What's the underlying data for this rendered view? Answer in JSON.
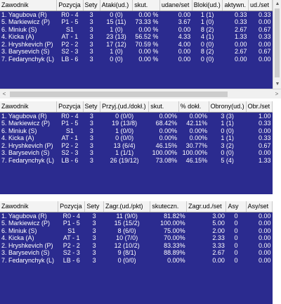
{
  "t1": {
    "headers": [
      "Zawodnik",
      "Pozycja",
      "Sety",
      "Ataki(ud.)",
      "skut.",
      "udane/set",
      "Bloki(ud.)",
      "aktywn.",
      "ud./set"
    ],
    "rows": [
      [
        "1. Yagubova (R)",
        "R0 - 4",
        "3",
        "0 (0)",
        "0.00 %",
        "0.00",
        "1 (1)",
        "0.33",
        "0.33"
      ],
      [
        "5. Markiewicz (P)",
        "P1 - 5",
        "3",
        "15 (11)",
        "73.33 %",
        "3.67",
        "1 (0)",
        "0.33",
        "0.00"
      ],
      [
        "6. Miniuk (S)",
        "S1",
        "3",
        "1 (0)",
        "0.00 %",
        "0.00",
        "8 (2)",
        "2.67",
        "0.67"
      ],
      [
        "4. Kicka (A)",
        "AT - 1",
        "3",
        "23 (13)",
        "56.52 %",
        "4.33",
        "4 (1)",
        "1.33",
        "0.33"
      ],
      [
        "2. Hryshkevich (P)",
        "P2 - 2",
        "3",
        "17 (12)",
        "70.59 %",
        "4.00",
        "0 (0)",
        "0.00",
        "0.00"
      ],
      [
        "3. Barysevich (S)",
        "S2 - 3",
        "3",
        "1 (0)",
        "0.00 %",
        "0.00",
        "8 (2)",
        "2.67",
        "0.67"
      ],
      [
        "7. Fedarynchyk (L)",
        "LB - 6",
        "3",
        "0 (0)",
        "0.00 %",
        "0.00",
        "0 (0)",
        "0.00",
        "0.00"
      ]
    ]
  },
  "t2": {
    "headers": [
      "Zawodnik",
      "Pozycja",
      "Sety",
      "Przyj.(ud./dokł.)",
      "skut.",
      "% dokł.",
      "Obrony(ud.)",
      "Obr./set"
    ],
    "rows": [
      [
        "1. Yagubova (R)",
        "R0 - 4",
        "3",
        "0 (0/0)",
        "0.00%",
        "0.00%",
        "3 (3)",
        "1.00"
      ],
      [
        "5. Markiewicz (P)",
        "P1 - 5",
        "3",
        "19 (13/8)",
        "68.42%",
        "42.11%",
        "1 (1)",
        "0.33"
      ],
      [
        "6. Miniuk (S)",
        "S1",
        "3",
        "1 (0/0)",
        "0.00%",
        "0.00%",
        "0 (0)",
        "0.00"
      ],
      [
        "4. Kicka (A)",
        "AT - 1",
        "3",
        "0 (0/0)",
        "0.00%",
        "0.00%",
        "1 (1)",
        "0.33"
      ],
      [
        "2. Hryshkevich (P)",
        "P2 - 2",
        "3",
        "13 (6/4)",
        "46.15%",
        "30.77%",
        "3 (2)",
        "0.67"
      ],
      [
        "3. Barysevich (S)",
        "S2 - 3",
        "3",
        "1 (1/1)",
        "100.00%",
        "100.00%",
        "0 (0)",
        "0.00"
      ],
      [
        "7. Fedarynchyk (L)",
        "LB - 6",
        "3",
        "26 (19/12)",
        "73.08%",
        "46.15%",
        "5 (4)",
        "1.33"
      ]
    ]
  },
  "t3": {
    "headers": [
      "Zawodnik",
      "Pozycja",
      "Sety",
      "Zagr.(ud./pkt)",
      "skuteczn.",
      "Zagr.ud./set",
      "Asy",
      "Asy/set"
    ],
    "rows": [
      [
        "1. Yagubova (R)",
        "R0 - 4",
        "3",
        "11 (9/0)",
        "81.82%",
        "3.00",
        "0",
        "0.00"
      ],
      [
        "5. Markiewicz (P)",
        "P1 - 5",
        "3",
        "15 (15/2)",
        "100.00%",
        "5.00",
        "0",
        "0.00"
      ],
      [
        "6. Miniuk (S)",
        "S1",
        "3",
        "8 (6/0)",
        "75.00%",
        "2.00",
        "0",
        "0.00"
      ],
      [
        "4. Kicka (A)",
        "AT - 1",
        "3",
        "10 (7/0)",
        "70.00%",
        "2.33",
        "0",
        "0.00"
      ],
      [
        "2. Hryshkevich (P)",
        "P2 - 2",
        "3",
        "12 (10/2)",
        "83.33%",
        "3.33",
        "0",
        "0.00"
      ],
      [
        "3. Barysevich (S)",
        "S2 - 3",
        "3",
        "9 (8/1)",
        "88.89%",
        "2.67",
        "0",
        "0.00"
      ],
      [
        "7. Fedarynchyk (L)",
        "LB - 6",
        "3",
        "0 (0/0)",
        "0.00%",
        "0.00",
        "0",
        "0.00"
      ]
    ]
  },
  "icons": {
    "up": "▲",
    "down": "▼",
    "left": "<",
    "right": ">"
  }
}
